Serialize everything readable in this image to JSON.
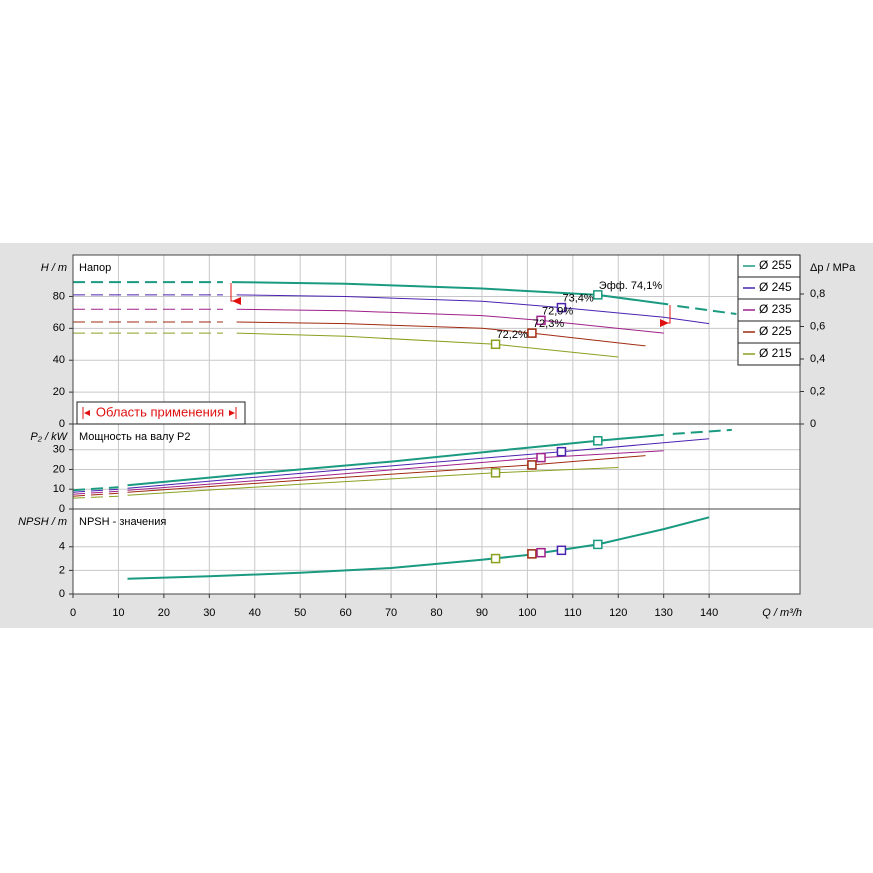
{
  "chart_data": [
    {
      "type": "line",
      "title": "Напор",
      "y_label": "H / m",
      "y2_label": "Δp / MPa",
      "xlim": [
        0,
        160
      ],
      "xticks": [
        0,
        10,
        20,
        30,
        40,
        50,
        60,
        70,
        80,
        90,
        100,
        110,
        120,
        130,
        140
      ],
      "ylim": [
        0,
        106
      ],
      "yticks": [
        0,
        20,
        40,
        60,
        80
      ],
      "y2lim": [
        0,
        1.04
      ],
      "y2ticks": [
        0,
        {
          "value": 0.2,
          "label": "0,2"
        },
        {
          "value": 0.4,
          "label": "0,4"
        },
        {
          "value": 0.6,
          "label": "0,6"
        },
        {
          "value": 0.8,
          "label": "0,8"
        }
      ],
      "grid": true,
      "legend": "top-right",
      "annotation": "Область применения",
      "series": [
        {
          "name": "Ø 255",
          "color": "#1a9a80",
          "width": 2,
          "piece_styles": [
            "dashed",
            "solid",
            "dashed"
          ],
          "x": [
            0,
            33,
            34,
            35,
            60,
            90,
            115.5,
            131,
            132,
            133,
            146
          ],
          "values": [
            89,
            89,
            null,
            89,
            88,
            85,
            81,
            75,
            null,
            74,
            69
          ]
        },
        {
          "name": "Ø 245",
          "color": "#4b22b0",
          "width": 1,
          "piece_styles": [
            "dashed",
            "solid"
          ],
          "x": [
            0,
            33,
            34,
            36,
            60,
            90,
            107.5,
            130,
            140
          ],
          "values": [
            81,
            81,
            null,
            81,
            80,
            77,
            73,
            67,
            63
          ]
        },
        {
          "name": "Ø 235",
          "color": "#a0208a",
          "width": 1,
          "piece_styles": [
            "dashed",
            "solid"
          ],
          "x": [
            0,
            33,
            34,
            36,
            60,
            90,
            103,
            130
          ],
          "values": [
            72,
            72,
            null,
            72,
            71,
            68,
            65,
            57
          ]
        },
        {
          "name": "Ø 225",
          "color": "#a02a10",
          "width": 1,
          "piece_styles": [
            "dashed",
            "solid"
          ],
          "x": [
            0,
            33,
            34,
            36,
            60,
            90,
            101,
            126
          ],
          "values": [
            64,
            64,
            null,
            64,
            63,
            60,
            57,
            49
          ]
        },
        {
          "name": "Ø 215",
          "color": "#8aa020",
          "width": 1,
          "piece_styles": [
            "dashed",
            "solid"
          ],
          "x": [
            0,
            33,
            34,
            36,
            60,
            93,
            120
          ],
          "values": [
            57,
            57,
            null,
            57,
            55,
            50,
            42
          ]
        }
      ],
      "markers": [
        {
          "x": 115.5,
          "y": 81,
          "color": "#1a9a80",
          "label": "Эфф.  74,1%"
        },
        {
          "x": 107.5,
          "y": 73,
          "color": "#4b22b0",
          "label": "73,4%"
        },
        {
          "x": 103,
          "y": 65,
          "color": "#a0208a",
          "label": "72,9%"
        },
        {
          "x": 101,
          "y": 57,
          "color": "#a02a10",
          "label": "72,3%"
        },
        {
          "x": 93,
          "y": 50,
          "color": "#8aa020",
          "label": "72,2%"
        }
      ]
    },
    {
      "type": "line",
      "title": "Мощность на валу P2",
      "y_label": "P₂ / kW",
      "xlim": [
        0,
        160
      ],
      "xticks": [
        0,
        10,
        20,
        30,
        40,
        50,
        60,
        70,
        80,
        90,
        100,
        110,
        120,
        130,
        140
      ],
      "ylim": [
        0,
        43
      ],
      "yticks": [
        0,
        10,
        20,
        30
      ],
      "grid": true,
      "series": [
        {
          "color": "#1a9a80",
          "width": 2,
          "piece_styles": [
            "dashed",
            "solid",
            "dashed"
          ],
          "x": [
            0,
            10,
            11,
            12,
            40,
            70,
            100,
            115.5,
            130,
            131,
            132,
            145
          ],
          "values": [
            9.5,
            11,
            null,
            12,
            18,
            24,
            31,
            34.5,
            37.5,
            null,
            38,
            40
          ]
        },
        {
          "color": "#4b22b0",
          "width": 1,
          "piece_styles": [
            "dashed",
            "solid"
          ],
          "x": [
            0,
            10,
            11,
            12,
            50,
            107.5,
            140
          ],
          "values": [
            8.5,
            10,
            null,
            10.5,
            18,
            29,
            35.5
          ]
        },
        {
          "color": "#a0208a",
          "width": 1,
          "piece_styles": [
            "dashed",
            "solid"
          ],
          "x": [
            0,
            10,
            11,
            12,
            50,
            103,
            130
          ],
          "values": [
            7.5,
            9,
            null,
            9.5,
            16,
            26,
            29.5
          ]
        },
        {
          "color": "#a02a10",
          "width": 1,
          "piece_styles": [
            "dashed",
            "solid"
          ],
          "x": [
            0,
            10,
            11,
            12,
            50,
            101,
            126
          ],
          "values": [
            6.5,
            8,
            null,
            8.5,
            14.5,
            22.3,
            27
          ]
        },
        {
          "color": "#8aa020",
          "width": 1,
          "piece_styles": [
            "dashed",
            "solid"
          ],
          "x": [
            0,
            10,
            11,
            12,
            50,
            93,
            120
          ],
          "values": [
            5.5,
            6.5,
            null,
            7,
            12.5,
            18.3,
            21
          ]
        }
      ],
      "markers": [
        {
          "x": 115.5,
          "y": 34.5,
          "color": "#1a9a80"
        },
        {
          "x": 107.5,
          "y": 29,
          "color": "#4b22b0"
        },
        {
          "x": 103,
          "y": 26,
          "color": "#a0208a"
        },
        {
          "x": 101,
          "y": 22.3,
          "color": "#a02a10"
        },
        {
          "x": 93,
          "y": 18.3,
          "color": "#8aa020"
        }
      ]
    },
    {
      "type": "line",
      "title": "NPSH - значения",
      "y_label": "NPSH / m",
      "x_label": "Q / m³/h",
      "xlim": [
        0,
        160
      ],
      "xticks": [
        0,
        10,
        20,
        30,
        40,
        50,
        60,
        70,
        80,
        90,
        100,
        110,
        120,
        130,
        140
      ],
      "ylim": [
        0,
        7.2
      ],
      "yticks": [
        0,
        2,
        4
      ],
      "grid": true,
      "series": [
        {
          "color": "#1a9a80",
          "width": 2,
          "piece_styles": [
            "solid",
            "dashed"
          ],
          "x": [
            12,
            30,
            50,
            70,
            90,
            100,
            115.5,
            130,
            140,
            141,
            146
          ],
          "values": [
            1.3,
            1.5,
            1.8,
            2.2,
            2.9,
            3.3,
            4.2,
            5.5,
            6.5,
            null,
            7.1
          ]
        }
      ],
      "markers": [
        {
          "x": 93,
          "y": 3.0,
          "color": "#8aa020"
        },
        {
          "x": 101,
          "y": 3.4,
          "color": "#a02a10"
        },
        {
          "x": 103,
          "y": 3.5,
          "color": "#a0208a"
        },
        {
          "x": 107.5,
          "y": 3.7,
          "color": "#4b22b0"
        },
        {
          "x": 115.5,
          "y": 4.2,
          "color": "#1a9a80"
        }
      ]
    }
  ]
}
